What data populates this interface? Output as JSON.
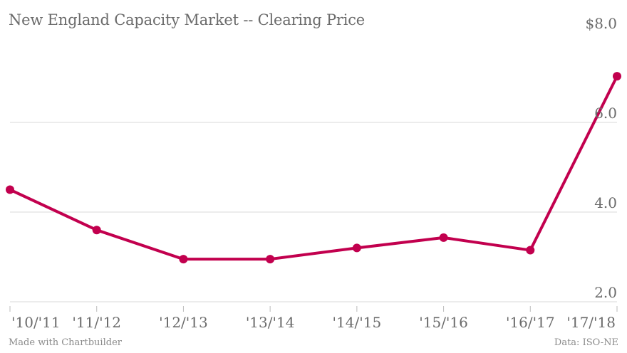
{
  "chart_data": {
    "type": "line",
    "title": "New England Capacity Market -- Clearing Price",
    "xlabel": "",
    "ylabel": "",
    "categories": [
      "'10/'11",
      "'11/'12",
      "'12/'13",
      "'13/'14",
      "'14/'15",
      "'15/'16",
      "'16/'17",
      "'17/'18"
    ],
    "series": [
      {
        "values": [
          4.5,
          3.6,
          2.95,
          2.95,
          3.2,
          3.43,
          3.15,
          7.03
        ]
      }
    ],
    "ylim": [
      2.0,
      8.0
    ],
    "yticks": [
      {
        "value": 2.0,
        "label": "2.0"
      },
      {
        "value": 4.0,
        "label": "4.0"
      },
      {
        "value": 6.0,
        "label": "6.0"
      },
      {
        "value": 8.0,
        "label": "$8.0"
      }
    ],
    "grid": true,
    "line_color": "#c2004e"
  },
  "footer": {
    "credit": "Made with Chartbuilder",
    "source": "Data: ISO-NE"
  }
}
